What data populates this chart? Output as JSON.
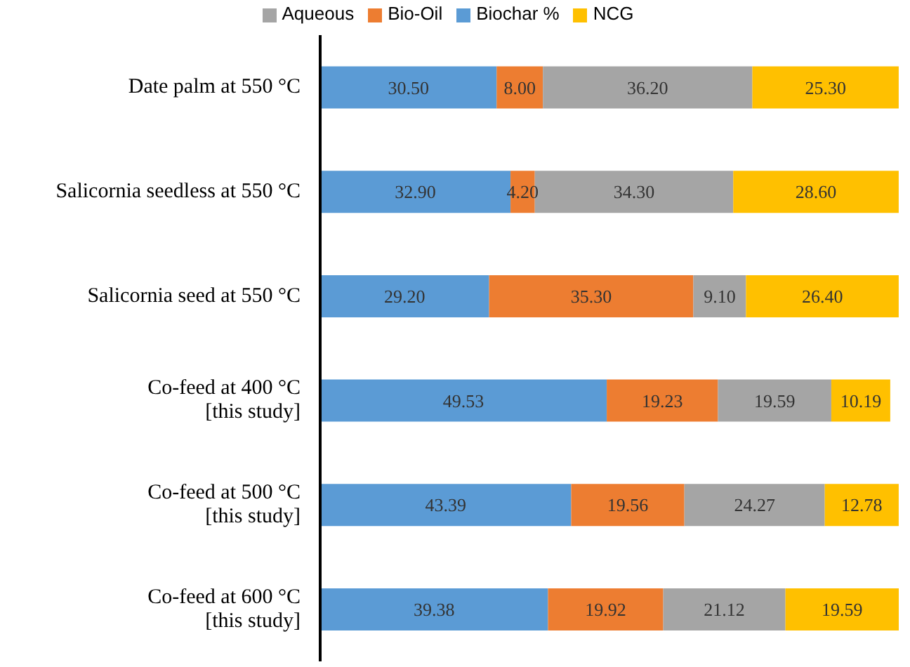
{
  "chart_data": {
    "type": "bar",
    "orientation": "horizontal",
    "stacked": true,
    "tick_labels": "y",
    "legend": "top",
    "categories": [
      "Date palm at 550 °C",
      "Salicornia seedless at 550 °C",
      "Salicornia seed at 550 °C",
      "Co-feed at 400 °C\n[this study]",
      "Co-feed at 500 °C\n[this study]",
      "Co-feed at 600 °C\n[this study]"
    ],
    "series": [
      {
        "name": "Biochar %",
        "color": "#5b9bd5",
        "values": [
          30.5,
          32.9,
          29.2,
          49.53,
          43.39,
          39.38
        ],
        "value_labels": [
          "30.50",
          "32.90",
          "29.20",
          "49.53",
          "43.39",
          "39.38"
        ]
      },
      {
        "name": "Bio-Oil",
        "color": "#ed7d31",
        "values": [
          8.0,
          4.2,
          35.3,
          19.23,
          19.56,
          19.92
        ],
        "value_labels": [
          "8.00",
          "4.20",
          "35.30",
          "19.23",
          "19.56",
          "19.92"
        ]
      },
      {
        "name": "Aqueous",
        "color": "#a5a5a5",
        "values": [
          36.2,
          34.3,
          9.1,
          19.59,
          24.27,
          21.12
        ],
        "value_labels": [
          "36.20",
          "34.30",
          "9.10",
          "19.59",
          "24.27",
          "21.12"
        ]
      },
      {
        "name": "NCG",
        "color": "#ffc000",
        "values": [
          25.3,
          28.6,
          26.4,
          10.19,
          12.78,
          19.59
        ],
        "value_labels": [
          "25.30",
          "28.60",
          "26.40",
          "10.19",
          "12.78",
          "19.59"
        ]
      }
    ]
  }
}
